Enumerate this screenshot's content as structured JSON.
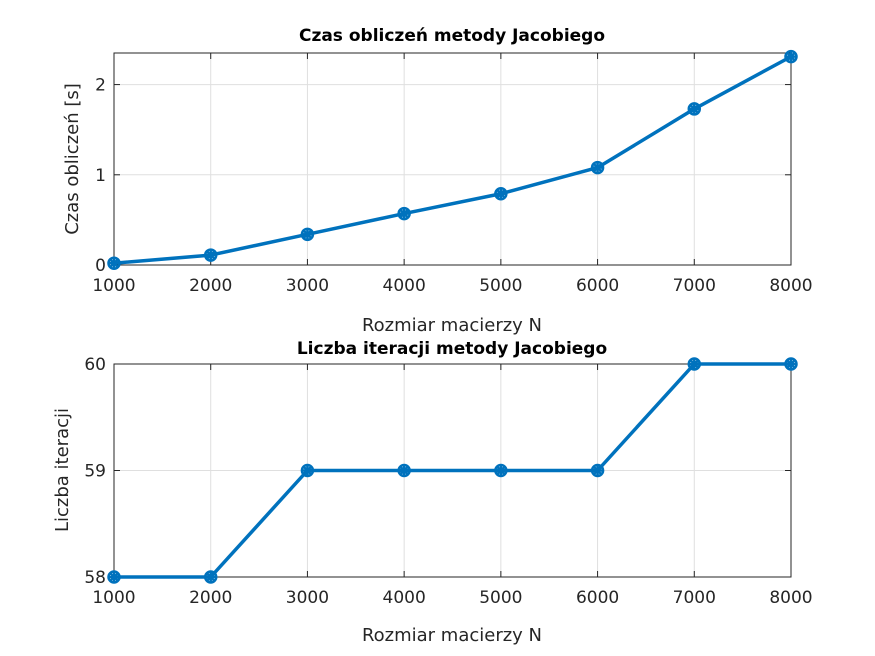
{
  "chart_data": [
    {
      "type": "line",
      "title": "Czas obliczeń metody Jacobiego",
      "xlabel": "Rozmiar macierzy N",
      "ylabel": "Czas obliczeń [s]",
      "x": [
        1000,
        2000,
        3000,
        4000,
        5000,
        6000,
        7000,
        8000
      ],
      "series": [
        {
          "values": [
            0.02,
            0.11,
            0.34,
            0.57,
            0.79,
            1.08,
            1.73,
            2.31
          ]
        }
      ],
      "xlim": [
        1000,
        8000
      ],
      "ylim": [
        0,
        2.35
      ],
      "xticks": [
        1000,
        2000,
        3000,
        4000,
        5000,
        6000,
        7000,
        8000
      ],
      "yticks": [
        0,
        1,
        2
      ],
      "grid": true,
      "color": "#0072BD"
    },
    {
      "type": "line",
      "title": "Liczba iteracji metody Jacobiego",
      "xlabel": "Rozmiar macierzy N",
      "ylabel": "Liczba iteracji",
      "x": [
        1000,
        2000,
        3000,
        4000,
        5000,
        6000,
        7000,
        8000
      ],
      "series": [
        {
          "values": [
            58,
            58,
            59,
            59,
            59,
            59,
            60,
            60
          ]
        }
      ],
      "xlim": [
        1000,
        8000
      ],
      "ylim": [
        58,
        60
      ],
      "xticks": [
        1000,
        2000,
        3000,
        4000,
        5000,
        6000,
        7000,
        8000
      ],
      "yticks": [
        58,
        59,
        60
      ],
      "grid": true,
      "color": "#0072BD"
    }
  ]
}
